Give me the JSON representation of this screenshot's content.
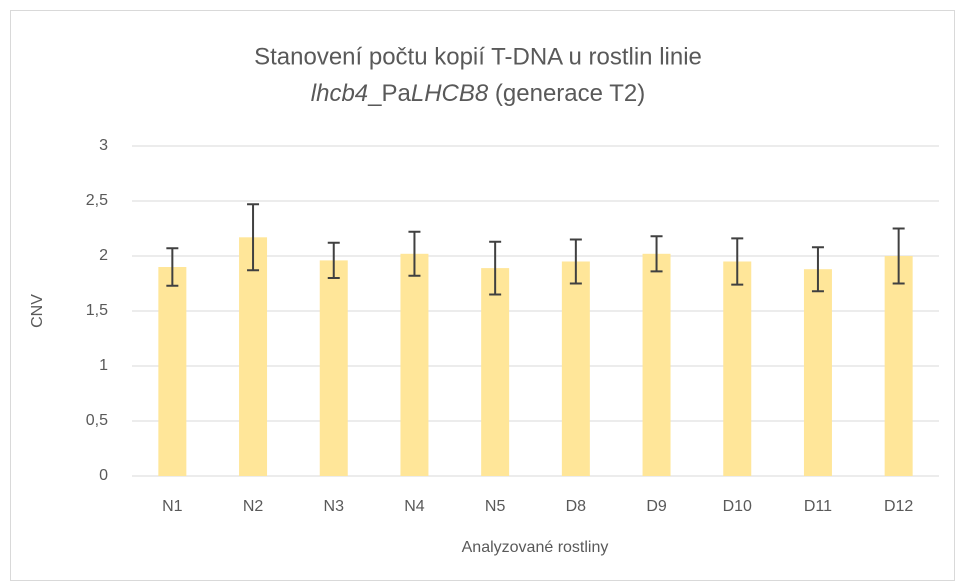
{
  "chart_data": {
    "type": "bar",
    "title": {
      "line1": "Stanovení počtu kopií T-DNA u rostlin linie",
      "line2": [
        "lhcb4",
        "_Pa",
        "LHCB8",
        " (generace T2)"
      ]
    },
    "x_label": "Analyzované rostliny",
    "y_label": "CNV",
    "categories": [
      "N1",
      "N2",
      "N3",
      "N4",
      "N5",
      "D8",
      "D9",
      "D10",
      "D11",
      "D12"
    ],
    "values": [
      1.9,
      2.17,
      1.96,
      2.02,
      1.89,
      1.95,
      2.02,
      1.95,
      1.88,
      2.0
    ],
    "errors": [
      0.17,
      0.3,
      0.16,
      0.2,
      0.24,
      0.2,
      0.16,
      0.21,
      0.2,
      0.25
    ],
    "color": "#ffe699",
    "error_color": "#404040",
    "ylim": [
      0,
      3
    ],
    "yticks": [
      0,
      {
        "value": 0.5,
        "label": "0,5"
      },
      1,
      {
        "value": 1.5,
        "label": "1,5"
      },
      2,
      {
        "value": 2.5,
        "label": "2,5"
      },
      3
    ],
    "grid": true
  }
}
